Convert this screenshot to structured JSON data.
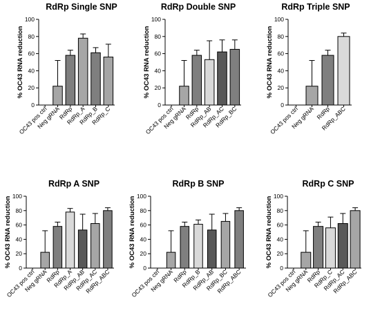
{
  "chart_data": [
    {
      "type": "bar",
      "title": "RdRp Single SNP",
      "ylabel": "% OC43 RNA reduction",
      "ylim": [
        0,
        100
      ],
      "yticks": [
        0,
        20,
        40,
        60,
        80,
        100
      ],
      "categories": [
        "OC43 pos ctrl",
        "Neg gRNA",
        "RdRp",
        "RdRp_A",
        "RdRp_B",
        "RdRp_C"
      ],
      "values": [
        0,
        22,
        58,
        78,
        61,
        56
      ],
      "errors": [
        0,
        30,
        6,
        5,
        6,
        15
      ],
      "bar_colors": [
        "#ffffff",
        "#a6a6a6",
        "#7f7f7f",
        "#a6a6a6",
        "#7f7f7f",
        "#a6a6a6"
      ]
    },
    {
      "type": "bar",
      "title": "RdRp Double SNP",
      "ylabel": "% OC43 RNA reduction",
      "ylim": [
        0,
        100
      ],
      "yticks": [
        0,
        20,
        40,
        60,
        80,
        100
      ],
      "categories": [
        "OC43 pos ctrl",
        "Neg gRNA",
        "RdRp",
        "RdRp_AB",
        "RdRp_AC",
        "RdRp_BC"
      ],
      "values": [
        0,
        22,
        58,
        53,
        62,
        65
      ],
      "errors": [
        0,
        30,
        6,
        22,
        14,
        11
      ],
      "bar_colors": [
        "#ffffff",
        "#a6a6a6",
        "#7f7f7f",
        "#d9d9d9",
        "#595959",
        "#7f7f7f"
      ]
    },
    {
      "type": "bar",
      "title": "RdRp Triple SNP",
      "ylabel": "% OC43 RNA reduction",
      "ylim": [
        0,
        100
      ],
      "yticks": [
        0,
        20,
        40,
        60,
        80,
        100
      ],
      "categories": [
        "OC43 pos ctrl",
        "Neg gRNA",
        "RdRp",
        "RdRp_ABC"
      ],
      "values": [
        0,
        22,
        58,
        80
      ],
      "errors": [
        0,
        30,
        6,
        4
      ],
      "bar_colors": [
        "#ffffff",
        "#a6a6a6",
        "#7f7f7f",
        "#d9d9d9"
      ]
    },
    {
      "type": "bar",
      "title": "RdRp A SNP",
      "ylabel": "% OC43 RNA reduction",
      "ylim": [
        0,
        100
      ],
      "yticks": [
        0,
        20,
        40,
        60,
        80,
        100
      ],
      "categories": [
        "OC43 pos ctrl",
        "Neg gRNA",
        "RdRp",
        "RdRp_A",
        "RdRp_AB",
        "RdRp_AC",
        "RdRp_ABC"
      ],
      "values": [
        0,
        22,
        58,
        78,
        53,
        62,
        80
      ],
      "errors": [
        0,
        30,
        6,
        5,
        22,
        14,
        4
      ],
      "bar_colors": [
        "#ffffff",
        "#a6a6a6",
        "#7f7f7f",
        "#d9d9d9",
        "#595959",
        "#a6a6a6",
        "#7f7f7f"
      ]
    },
    {
      "type": "bar",
      "title": "RdRp B SNP",
      "ylabel": "% OC43 RNA reduction",
      "ylim": [
        0,
        100
      ],
      "yticks": [
        0,
        20,
        40,
        60,
        80,
        100
      ],
      "categories": [
        "OC43 pos ctrl",
        "Neg gRNA",
        "RdRp",
        "RdRp_B",
        "RdRp_AB",
        "RdRp_BC",
        "RdRp_ABC"
      ],
      "values": [
        0,
        22,
        58,
        61,
        53,
        65,
        80
      ],
      "errors": [
        0,
        30,
        6,
        6,
        22,
        11,
        4
      ],
      "bar_colors": [
        "#ffffff",
        "#a6a6a6",
        "#7f7f7f",
        "#d9d9d9",
        "#595959",
        "#a6a6a6",
        "#7f7f7f"
      ]
    },
    {
      "type": "bar",
      "title": "RdRp C SNP",
      "ylabel": "% OC43 RNA reduction",
      "ylim": [
        0,
        100
      ],
      "yticks": [
        0,
        20,
        40,
        60,
        80,
        100
      ],
      "categories": [
        "OC43 pos ctrl",
        "Neg gRNA",
        "RdRp",
        "RdRp_C",
        "RdRp_AC",
        "RdRp_ABC"
      ],
      "values": [
        0,
        22,
        58,
        56,
        62,
        80
      ],
      "errors": [
        0,
        30,
        6,
        15,
        14,
        4
      ],
      "bar_colors": [
        "#ffffff",
        "#a6a6a6",
        "#7f7f7f",
        "#d9d9d9",
        "#595959",
        "#a6a6a6"
      ]
    }
  ]
}
